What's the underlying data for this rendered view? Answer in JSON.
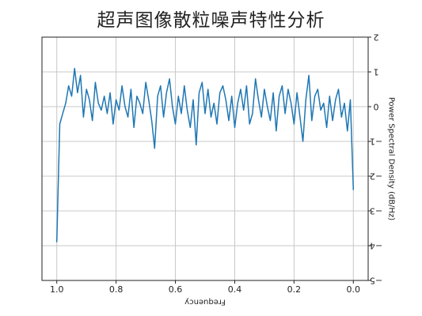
{
  "chart_data": {
    "type": "line",
    "title": "超声图像散粒噪声特性分析",
    "xlabel": "Frequency",
    "ylabel": "Power Spectral Density (dB/Hz)",
    "xlim": [
      1.05,
      -0.05
    ],
    "ylim": [
      -5,
      2
    ],
    "x_ticks": [
      1.0,
      0.8,
      0.6,
      0.4,
      0.2,
      0.0
    ],
    "y_ticks": [
      2,
      1,
      0,
      -1,
      -2,
      -3,
      -4,
      -5
    ],
    "x_tick_labels": [
      "1.0",
      "0.8",
      "0.6",
      "0.4",
      "0.2",
      "0.0"
    ],
    "y_tick_labels": [
      "2",
      "1",
      "0",
      "−1",
      "−2",
      "−3",
      "−4",
      "−5"
    ],
    "grid": true,
    "line_color": "#1f77b4",
    "series": [
      {
        "x": [
          1.0,
          0.99,
          0.98,
          0.97,
          0.96,
          0.95,
          0.94,
          0.93,
          0.92,
          0.91,
          0.9,
          0.89,
          0.88,
          0.87,
          0.86,
          0.85,
          0.84,
          0.83,
          0.82,
          0.81,
          0.8,
          0.79,
          0.78,
          0.77,
          0.76,
          0.75,
          0.74,
          0.73,
          0.72,
          0.71,
          0.7,
          0.69,
          0.68,
          0.67,
          0.66,
          0.65,
          0.64,
          0.63,
          0.62,
          0.61,
          0.6,
          0.59,
          0.58,
          0.57,
          0.56,
          0.55,
          0.54,
          0.53,
          0.52,
          0.51,
          0.5,
          0.49,
          0.48,
          0.47,
          0.46,
          0.45,
          0.44,
          0.43,
          0.42,
          0.41,
          0.4,
          0.39,
          0.38,
          0.37,
          0.36,
          0.35,
          0.34,
          0.33,
          0.32,
          0.31,
          0.3,
          0.29,
          0.28,
          0.27,
          0.26,
          0.25,
          0.24,
          0.23,
          0.22,
          0.21,
          0.2,
          0.19,
          0.18,
          0.17,
          0.16,
          0.15,
          0.14,
          0.13,
          0.12,
          0.11,
          0.1,
          0.09,
          0.08,
          0.07,
          0.06,
          0.05,
          0.04,
          0.03,
          0.02,
          0.01,
          0.0
        ],
        "y": [
          -3.9,
          -0.5,
          -0.2,
          0.1,
          0.6,
          0.3,
          1.1,
          0.4,
          0.9,
          -0.3,
          0.5,
          0.2,
          -0.4,
          0.7,
          0.1,
          -0.1,
          0.3,
          -0.2,
          0.4,
          -0.5,
          0.2,
          -0.1,
          0.6,
          0.0,
          -0.3,
          0.5,
          -0.6,
          0.3,
          0.1,
          -0.2,
          0.7,
          0.2,
          -0.4,
          -1.2,
          0.3,
          0.6,
          -0.3,
          0.4,
          0.8,
          0.0,
          -0.5,
          0.3,
          -0.2,
          0.6,
          -0.1,
          -0.6,
          0.2,
          -1.1,
          0.4,
          0.7,
          -0.2,
          0.5,
          -0.3,
          0.1,
          -0.5,
          0.4,
          0.6,
          0.2,
          -0.4,
          0.3,
          -0.6,
          0.1,
          0.5,
          -0.1,
          0.6,
          -0.5,
          -0.2,
          0.8,
          0.2,
          -0.3,
          0.5,
          0.0,
          -0.4,
          0.4,
          -0.7,
          0.3,
          0.6,
          -0.2,
          0.5,
          0.1,
          -0.5,
          0.4,
          -0.3,
          -1.0,
          0.2,
          0.9,
          -0.4,
          0.3,
          0.5,
          -0.1,
          0.1,
          -0.6,
          0.3,
          -0.4,
          0.2,
          0.5,
          -0.3,
          0.1,
          -0.7,
          0.2,
          -2.4
        ]
      }
    ]
  }
}
